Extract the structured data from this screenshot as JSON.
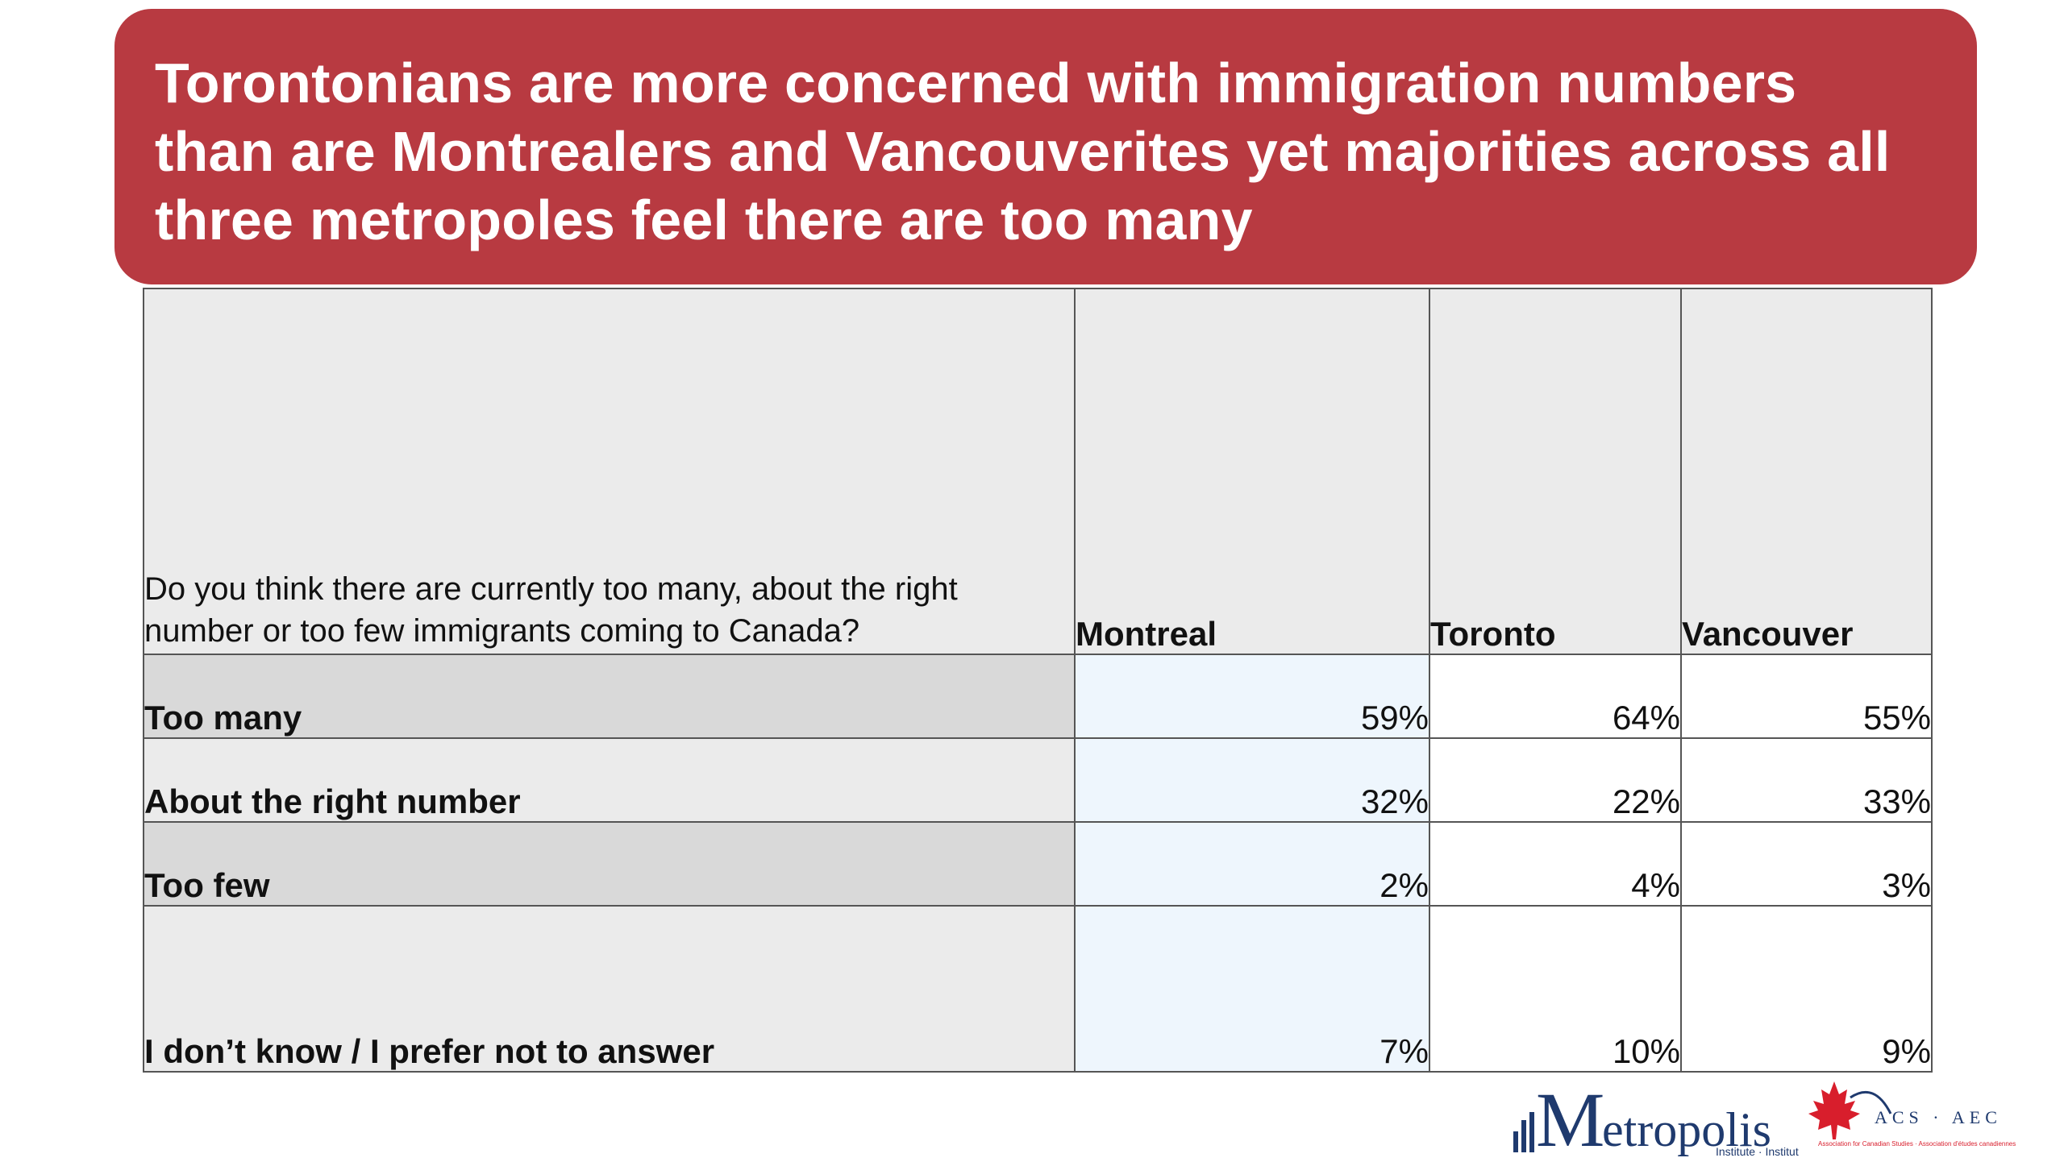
{
  "title": "Torontonians are more concerned with immigration numbers than are Montrealers and Vancouverites yet majorities across all three metropoles feel there are too many",
  "table": {
    "question": "Do you think there are currently too many, about the right number or too few immigrants coming to Canada?",
    "columns": [
      "Montreal",
      "Toronto",
      "Vancouver"
    ],
    "rows": [
      {
        "label": "Too many",
        "values": [
          "59%",
          "64%",
          "55%"
        ]
      },
      {
        "label": "About the right number",
        "values": [
          "32%",
          "22%",
          "33%"
        ]
      },
      {
        "label": "Too few",
        "values": [
          "2%",
          "4%",
          "3%"
        ]
      },
      {
        "label": "I don’t know / I prefer not to answer",
        "values": [
          "7%",
          "10%",
          "9%"
        ]
      }
    ]
  },
  "logos": {
    "metropolis": "Metropolis",
    "metropolis_sub": "Institute · Institut",
    "acs": "ACS · AEC",
    "acs_sub": "Association for Canadian Studies · Association d'études canadiennes"
  },
  "colors": {
    "banner": "#b83a41",
    "header_bg": "#ebebeb",
    "shaded_row": "#d9d9d9",
    "montreal_col": "#eef6fd",
    "logo_blue": "#1f3a6e",
    "maple_red": "#d81e2c"
  }
}
